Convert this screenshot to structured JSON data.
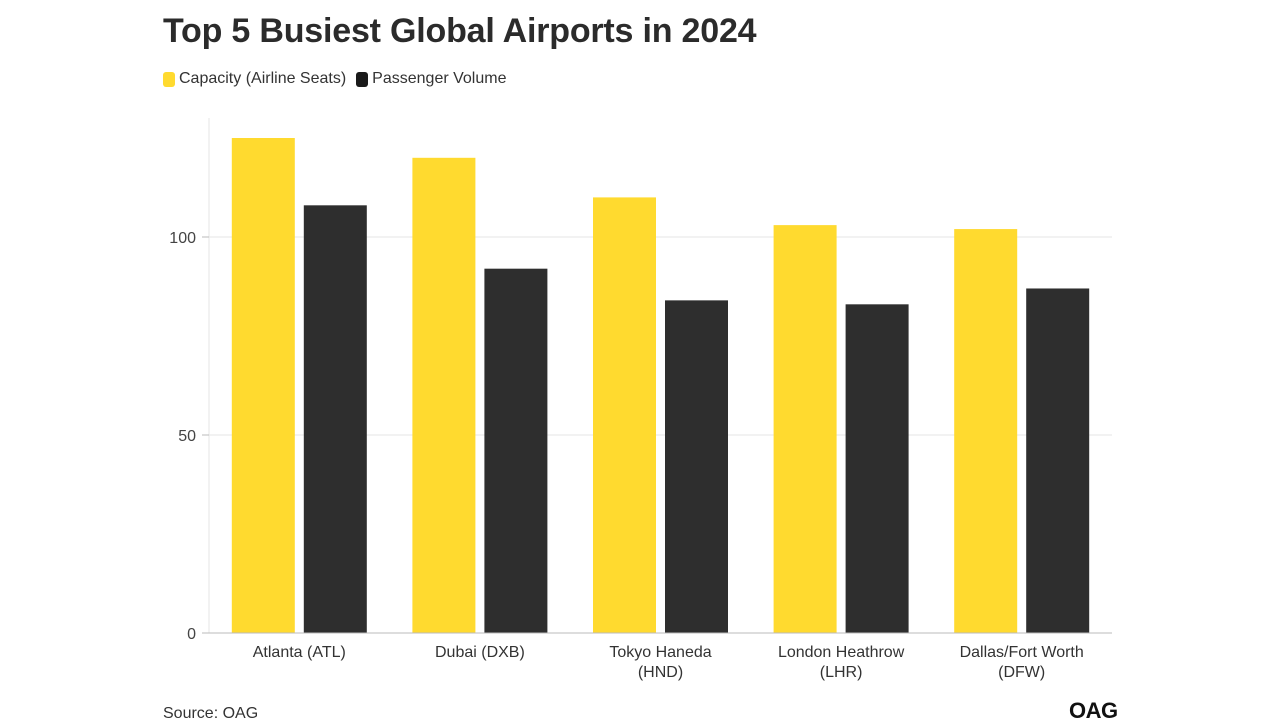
{
  "title": "Top 5 Busiest Global Airports in 2024",
  "source": "Source: OAG",
  "logo": "OAG",
  "colors": {
    "capacity": "#FFDA2F",
    "passengers": "#2E2E2E",
    "grid": "#e6e6e6",
    "axis": "#bbbbbb"
  },
  "chart_data": {
    "type": "bar",
    "title": "Top 5 Busiest Global Airports in 2024",
    "xlabel": "",
    "ylabel": "",
    "ylim": [
      0,
      125
    ],
    "yticks": [
      0,
      50,
      100
    ],
    "grid": true,
    "legend_position": "top-left",
    "categories": [
      [
        "Atlanta (ATL)"
      ],
      [
        "Dubai (DXB)"
      ],
      [
        "Tokyo Haneda",
        "(HND)"
      ],
      [
        "London Heathrow",
        "(LHR)"
      ],
      [
        "Dallas/Fort Worth",
        "(DFW)"
      ]
    ],
    "series": [
      {
        "name": "Capacity (Airline Seats)",
        "color": "#FFDA2F",
        "values": [
          125,
          120,
          110,
          103,
          102
        ]
      },
      {
        "name": "Passenger Volume",
        "color": "#2E2E2E",
        "values": [
          108,
          92,
          84,
          83,
          87
        ]
      }
    ]
  }
}
